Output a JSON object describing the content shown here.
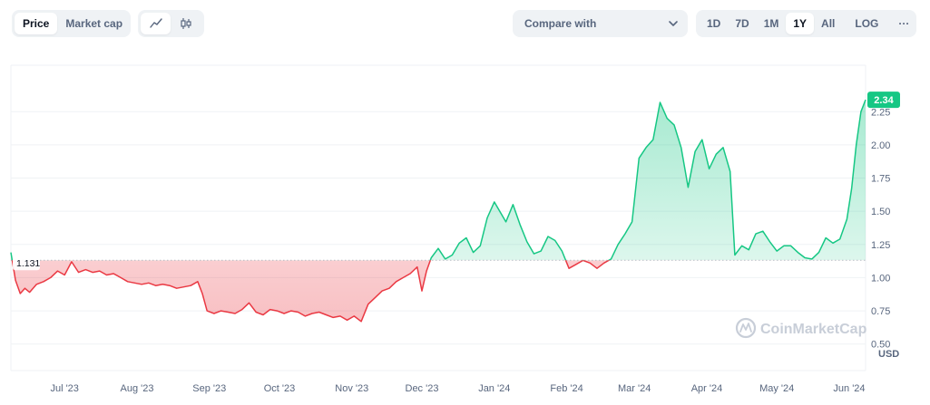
{
  "toolbar": {
    "view_tabs": [
      {
        "label": "Price",
        "active": true
      },
      {
        "label": "Market cap",
        "active": false
      }
    ],
    "chart_type_icons": [
      "line-chart-icon",
      "candlestick-icon"
    ],
    "compare_label": "Compare with",
    "ranges": [
      {
        "label": "1D",
        "active": false
      },
      {
        "label": "7D",
        "active": false
      },
      {
        "label": "1M",
        "active": false
      },
      {
        "label": "1Y",
        "active": true
      },
      {
        "label": "All",
        "active": false
      }
    ],
    "log_label": "LOG",
    "more_label": "···"
  },
  "watermark": "CoinMarketCap",
  "colors": {
    "up": "#16c784",
    "down": "#ea3943",
    "grid": "#eff2f5",
    "badge": "#16c784"
  },
  "chart_data": {
    "type": "area",
    "title": "",
    "xlabel": "",
    "ylabel": "",
    "unit": "USD",
    "baseline": 1.131,
    "baseline_label": "1.131",
    "current_price": 2.34,
    "current_label": "2.34",
    "ylim": [
      0.3,
      2.6
    ],
    "y_ticks": [
      0.5,
      0.75,
      1.0,
      1.25,
      1.5,
      1.75,
      2.0,
      2.25
    ],
    "y_tick_labels": [
      "0.50",
      "0.75",
      "1.00",
      "1.25",
      "1.50",
      "1.75",
      "2.00",
      "2.25"
    ],
    "x_range": [
      "2023-06-08",
      "2024-06-08"
    ],
    "x_ticks": [
      {
        "date": "2023-07-01",
        "label": "Jul '23"
      },
      {
        "date": "2023-08-01",
        "label": "Aug '23"
      },
      {
        "date": "2023-09-01",
        "label": "Sep '23"
      },
      {
        "date": "2023-10-01",
        "label": "Oct '23"
      },
      {
        "date": "2023-11-01",
        "label": "Nov '23"
      },
      {
        "date": "2023-12-01",
        "label": "Dec '23"
      },
      {
        "date": "2024-01-01",
        "label": "Jan '24"
      },
      {
        "date": "2024-02-01",
        "label": "Feb '24"
      },
      {
        "date": "2024-03-01",
        "label": "Mar '24"
      },
      {
        "date": "2024-04-01",
        "label": "Apr '24"
      },
      {
        "date": "2024-05-01",
        "label": "May '24"
      },
      {
        "date": "2024-06-01",
        "label": "Jun '24"
      }
    ],
    "grid": true,
    "series": [
      {
        "points": [
          [
            "2023-06-08",
            1.19
          ],
          [
            "2023-06-10",
            0.98
          ],
          [
            "2023-06-12",
            0.88
          ],
          [
            "2023-06-14",
            0.92
          ],
          [
            "2023-06-16",
            0.89
          ],
          [
            "2023-06-19",
            0.95
          ],
          [
            "2023-06-22",
            0.97
          ],
          [
            "2023-06-25",
            1.0
          ],
          [
            "2023-06-28",
            1.05
          ],
          [
            "2023-07-01",
            1.02
          ],
          [
            "2023-07-04",
            1.12
          ],
          [
            "2023-07-07",
            1.04
          ],
          [
            "2023-07-10",
            1.06
          ],
          [
            "2023-07-13",
            1.04
          ],
          [
            "2023-07-16",
            1.05
          ],
          [
            "2023-07-19",
            1.02
          ],
          [
            "2023-07-22",
            1.03
          ],
          [
            "2023-07-25",
            1.0
          ],
          [
            "2023-07-28",
            0.97
          ],
          [
            "2023-07-31",
            0.96
          ],
          [
            "2023-08-03",
            0.95
          ],
          [
            "2023-08-06",
            0.96
          ],
          [
            "2023-08-09",
            0.94
          ],
          [
            "2023-08-12",
            0.95
          ],
          [
            "2023-08-15",
            0.94
          ],
          [
            "2023-08-18",
            0.92
          ],
          [
            "2023-08-21",
            0.93
          ],
          [
            "2023-08-24",
            0.94
          ],
          [
            "2023-08-27",
            0.97
          ],
          [
            "2023-08-29",
            0.88
          ],
          [
            "2023-08-31",
            0.75
          ],
          [
            "2023-09-03",
            0.73
          ],
          [
            "2023-09-06",
            0.75
          ],
          [
            "2023-09-09",
            0.74
          ],
          [
            "2023-09-12",
            0.73
          ],
          [
            "2023-09-15",
            0.76
          ],
          [
            "2023-09-18",
            0.81
          ],
          [
            "2023-09-21",
            0.74
          ],
          [
            "2023-09-24",
            0.72
          ],
          [
            "2023-09-27",
            0.76
          ],
          [
            "2023-09-30",
            0.75
          ],
          [
            "2023-10-03",
            0.73
          ],
          [
            "2023-10-06",
            0.75
          ],
          [
            "2023-10-09",
            0.74
          ],
          [
            "2023-10-12",
            0.71
          ],
          [
            "2023-10-15",
            0.73
          ],
          [
            "2023-10-18",
            0.74
          ],
          [
            "2023-10-21",
            0.72
          ],
          [
            "2023-10-24",
            0.7
          ],
          [
            "2023-10-27",
            0.71
          ],
          [
            "2023-10-30",
            0.68
          ],
          [
            "2023-11-02",
            0.71
          ],
          [
            "2023-11-05",
            0.67
          ],
          [
            "2023-11-08",
            0.8
          ],
          [
            "2023-11-11",
            0.85
          ],
          [
            "2023-11-14",
            0.9
          ],
          [
            "2023-11-17",
            0.92
          ],
          [
            "2023-11-20",
            0.97
          ],
          [
            "2023-11-23",
            1.0
          ],
          [
            "2023-11-26",
            1.03
          ],
          [
            "2023-11-29",
            1.08
          ],
          [
            "2023-12-01",
            0.9
          ],
          [
            "2023-12-03",
            1.05
          ],
          [
            "2023-12-05",
            1.15
          ],
          [
            "2023-12-08",
            1.22
          ],
          [
            "2023-12-11",
            1.14
          ],
          [
            "2023-12-14",
            1.17
          ],
          [
            "2023-12-17",
            1.26
          ],
          [
            "2023-12-20",
            1.3
          ],
          [
            "2023-12-23",
            1.19
          ],
          [
            "2023-12-26",
            1.24
          ],
          [
            "2023-12-29",
            1.45
          ],
          [
            "2024-01-01",
            1.57
          ],
          [
            "2024-01-04",
            1.48
          ],
          [
            "2024-01-06",
            1.42
          ],
          [
            "2024-01-09",
            1.55
          ],
          [
            "2024-01-12",
            1.4
          ],
          [
            "2024-01-15",
            1.27
          ],
          [
            "2024-01-18",
            1.18
          ],
          [
            "2024-01-21",
            1.2
          ],
          [
            "2024-01-24",
            1.31
          ],
          [
            "2024-01-27",
            1.28
          ],
          [
            "2024-01-30",
            1.2
          ],
          [
            "2024-02-02",
            1.07
          ],
          [
            "2024-02-05",
            1.1
          ],
          [
            "2024-02-08",
            1.13
          ],
          [
            "2024-02-11",
            1.11
          ],
          [
            "2024-02-14",
            1.07
          ],
          [
            "2024-02-17",
            1.11
          ],
          [
            "2024-02-20",
            1.14
          ],
          [
            "2024-02-23",
            1.25
          ],
          [
            "2024-02-26",
            1.33
          ],
          [
            "2024-02-29",
            1.42
          ],
          [
            "2024-03-03",
            1.9
          ],
          [
            "2024-03-06",
            1.98
          ],
          [
            "2024-03-09",
            2.04
          ],
          [
            "2024-03-12",
            2.32
          ],
          [
            "2024-03-15",
            2.2
          ],
          [
            "2024-03-18",
            2.15
          ],
          [
            "2024-03-21",
            1.98
          ],
          [
            "2024-03-24",
            1.68
          ],
          [
            "2024-03-27",
            1.95
          ],
          [
            "2024-03-30",
            2.04
          ],
          [
            "2024-04-02",
            1.82
          ],
          [
            "2024-04-05",
            1.93
          ],
          [
            "2024-04-08",
            1.98
          ],
          [
            "2024-04-11",
            1.8
          ],
          [
            "2024-04-13",
            1.17
          ],
          [
            "2024-04-16",
            1.24
          ],
          [
            "2024-04-19",
            1.21
          ],
          [
            "2024-04-22",
            1.33
          ],
          [
            "2024-04-25",
            1.35
          ],
          [
            "2024-04-28",
            1.27
          ],
          [
            "2024-05-01",
            1.2
          ],
          [
            "2024-05-04",
            1.24
          ],
          [
            "2024-05-07",
            1.24
          ],
          [
            "2024-05-10",
            1.19
          ],
          [
            "2024-05-13",
            1.15
          ],
          [
            "2024-05-16",
            1.14
          ],
          [
            "2024-05-19",
            1.19
          ],
          [
            "2024-05-22",
            1.3
          ],
          [
            "2024-05-25",
            1.26
          ],
          [
            "2024-05-28",
            1.29
          ],
          [
            "2024-05-31",
            1.44
          ],
          [
            "2024-06-02",
            1.67
          ],
          [
            "2024-06-04",
            2.0
          ],
          [
            "2024-06-06",
            2.25
          ],
          [
            "2024-06-08",
            2.34
          ]
        ]
      }
    ]
  }
}
